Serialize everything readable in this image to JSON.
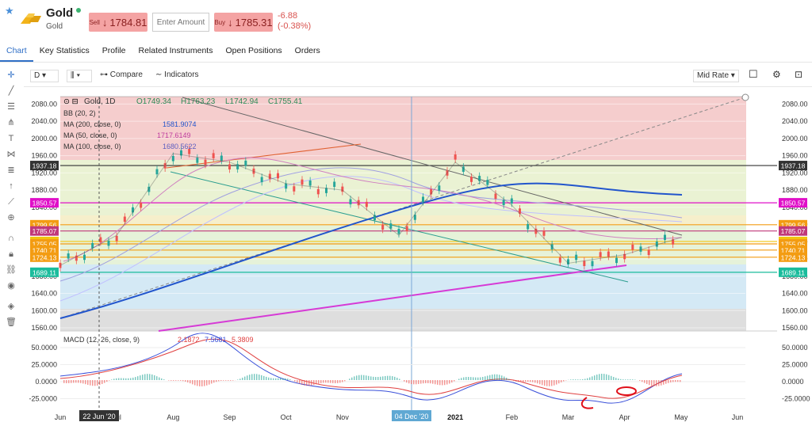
{
  "header": {
    "name": "Gold",
    "subtitle": "Gold",
    "sell_label": "Sell",
    "sell_price": "1784.81",
    "amount_placeholder": "Enter Amount",
    "buy_label": "Buy",
    "buy_price": "1785.31",
    "change": "-6.88",
    "change_pct": "(-0.38%)"
  },
  "tabs": [
    {
      "label": "Chart"
    },
    {
      "label": "Key Statistics"
    },
    {
      "label": "Profile"
    },
    {
      "label": "Related Instruments"
    },
    {
      "label": "Open Positions"
    },
    {
      "label": "Orders"
    }
  ],
  "toolbar": {
    "interval": "D",
    "compare": "Compare",
    "indicators": "Indicators",
    "price_type": "Mid Rate"
  },
  "legend": {
    "title": "Gold, 1D",
    "o": "O1749.34",
    "h": "H1763.23",
    "l": "L1742.94",
    "c": "C1755.41",
    "bb": "BB (20, 2)",
    "ma200": "MA (200, close, 0)",
    "ma200_val": "1581.9074",
    "ma50": "MA (50, close, 0)",
    "ma50_val": "1717.6149",
    "ma100": "MA (100, close, 0)",
    "ma100_val": "1680.5622",
    "macd": "MACD (12, 26, close, 9)",
    "macd_v1": "2.1872",
    "macd_v2": "7.5681",
    "macd_v3": "5.3809"
  },
  "chart_data": {
    "type": "line",
    "title": "Gold, 1D",
    "x": [
      "Jun",
      "Jul",
      "Aug",
      "Sep",
      "Oct",
      "Nov",
      "Dec",
      "2021",
      "Feb",
      "Mar",
      "Apr",
      "May",
      "Jun"
    ],
    "series": [
      {
        "name": "Gold",
        "values": [
          1705,
          1775,
          1965,
          1945,
          1895,
          1880,
          1775,
          1945,
          1845,
          1710,
          1730,
          1770,
          1785
        ]
      }
    ],
    "y_ticks": [
      "2080.00",
      "2040.00",
      "2000.00",
      "1960.00",
      "1920.00",
      "1880.00",
      "1840.00",
      "1800.00",
      "1760.00",
      "1720.00",
      "1680.00",
      "1640.00",
      "1600.00",
      "1560.00"
    ],
    "price_levels": [
      {
        "value": "1937.18",
        "color": "#333333"
      },
      {
        "value": "1850.57",
        "color": "#e010c8"
      },
      {
        "value": "1799.56",
        "color": "#f39c12"
      },
      {
        "value": "1785.07",
        "color": "#c0397a"
      },
      {
        "value": "1760.69",
        "color": "#f1c40f"
      },
      {
        "value": "1755.05",
        "color": "#f39c12"
      },
      {
        "value": "1740.71",
        "color": "#f39c12"
      },
      {
        "value": "1724.13",
        "color": "#f39c12"
      },
      {
        "value": "1689.11",
        "color": "#1abc9c"
      }
    ],
    "macd_ticks": [
      "50.0000",
      "25.0000",
      "0.0000",
      "-25.0000"
    ],
    "x_markers": [
      "22 Jun '20",
      "04 Dec '20"
    ],
    "ylim": [
      1540,
      2090
    ]
  }
}
